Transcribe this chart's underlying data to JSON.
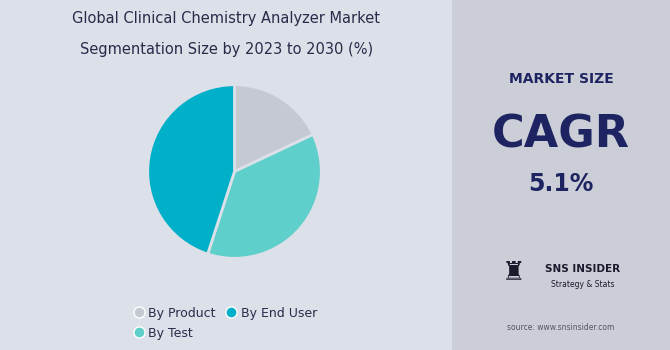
{
  "title_line1": "Global Clinical Chemistry Analyzer Market",
  "title_line2": "Segmentation Size by 2023 to 2030 (%)",
  "title_fontsize": 10.5,
  "pie_values": [
    18,
    37,
    45
  ],
  "pie_colors": [
    "#c5cad2",
    "#5ecfca",
    "#00b0c8"
  ],
  "pie_labels": [
    "By Product",
    "By Test",
    "By End User"
  ],
  "left_bg": "#dce0e8",
  "right_bg": "#cbced6",
  "market_size_label": "MARKET SIZE",
  "cagr_label": "CAGR",
  "cagr_value": "5.1%",
  "sns_label": "SNS INSIDER",
  "sns_sub": "Strategy & Stats",
  "source_text": "source: www.snsinsider.com",
  "text_color": "#1e2462",
  "title_color": "#2a2a4a",
  "startangle": 90
}
